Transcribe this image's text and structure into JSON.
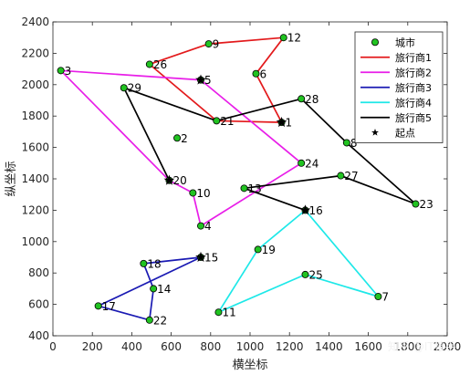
{
  "chart_data": {
    "type": "scatter",
    "title": "",
    "xlabel": "横坐标",
    "ylabel": "纵坐标",
    "xlim": [
      0,
      2000
    ],
    "ylim": [
      400,
      2400
    ],
    "xticks": [
      0,
      200,
      400,
      600,
      800,
      1000,
      1200,
      1400,
      1600,
      1800,
      2000
    ],
    "yticks": [
      400,
      600,
      800,
      1000,
      1200,
      1400,
      1600,
      1800,
      2000,
      2200,
      2400
    ],
    "grid": false,
    "legend_position": "top-right",
    "cities": [
      {
        "id": "1",
        "x": 1160,
        "y": 1760
      },
      {
        "id": "2",
        "x": 630,
        "y": 1660
      },
      {
        "id": "3",
        "x": 40,
        "y": 2090
      },
      {
        "id": "4",
        "x": 750,
        "y": 1100
      },
      {
        "id": "5",
        "x": 750,
        "y": 2030
      },
      {
        "id": "6",
        "x": 1030,
        "y": 2070
      },
      {
        "id": "7",
        "x": 1650,
        "y": 650
      },
      {
        "id": "8",
        "x": 1490,
        "y": 1630
      },
      {
        "id": "9",
        "x": 790,
        "y": 2260
      },
      {
        "id": "10",
        "x": 710,
        "y": 1310
      },
      {
        "id": "11",
        "x": 840,
        "y": 550
      },
      {
        "id": "12",
        "x": 1170,
        "y": 2300
      },
      {
        "id": "13",
        "x": 970,
        "y": 1340
      },
      {
        "id": "14",
        "x": 510,
        "y": 700
      },
      {
        "id": "15",
        "x": 750,
        "y": 900
      },
      {
        "id": "16",
        "x": 1280,
        "y": 1200
      },
      {
        "id": "17",
        "x": 230,
        "y": 590
      },
      {
        "id": "18",
        "x": 460,
        "y": 860
      },
      {
        "id": "19",
        "x": 1040,
        "y": 950
      },
      {
        "id": "20",
        "x": 590,
        "y": 1390
      },
      {
        "id": "21",
        "x": 830,
        "y": 1770
      },
      {
        "id": "22",
        "x": 490,
        "y": 500
      },
      {
        "id": "23",
        "x": 1840,
        "y": 1240
      },
      {
        "id": "24",
        "x": 1260,
        "y": 1500
      },
      {
        "id": "25",
        "x": 1280,
        "y": 790
      },
      {
        "id": "26",
        "x": 490,
        "y": 2130
      },
      {
        "id": "27",
        "x": 1460,
        "y": 1420
      },
      {
        "id": "28",
        "x": 1260,
        "y": 1910
      },
      {
        "id": "29",
        "x": 360,
        "y": 1980
      }
    ],
    "start_points": [
      {
        "x": 1160,
        "y": 1760
      },
      {
        "x": 750,
        "y": 2030
      },
      {
        "x": 590,
        "y": 1390
      },
      {
        "x": 1280,
        "y": 1200
      },
      {
        "x": 750,
        "y": 900
      }
    ],
    "series": [
      {
        "name": "旅行商1",
        "color": "#e31a1c",
        "route": [
          "1",
          "21",
          "26",
          "9",
          "12",
          "6",
          "1"
        ]
      },
      {
        "name": "旅行商2",
        "color": "#e81ee8",
        "route": [
          "5",
          "3",
          "20",
          "10",
          "4",
          "24",
          "5"
        ]
      },
      {
        "name": "旅行商3",
        "color": "#1a1ab3",
        "route": [
          "15",
          "18",
          "14",
          "22",
          "17",
          "15"
        ]
      },
      {
        "name": "旅行商4",
        "color": "#1ee8e8",
        "route": [
          "16",
          "19",
          "11",
          "25",
          "7",
          "16"
        ]
      },
      {
        "name": "旅行商5",
        "color": "#000000",
        "route": [
          "20",
          "29",
          "21",
          "28",
          "8",
          "23",
          "27",
          "13",
          "16"
        ]
      }
    ],
    "legend": {
      "city_label": "城市",
      "start_label": "起点"
    },
    "city_color": "#21c321"
  },
  "watermark": "知乎 @IT猿手"
}
